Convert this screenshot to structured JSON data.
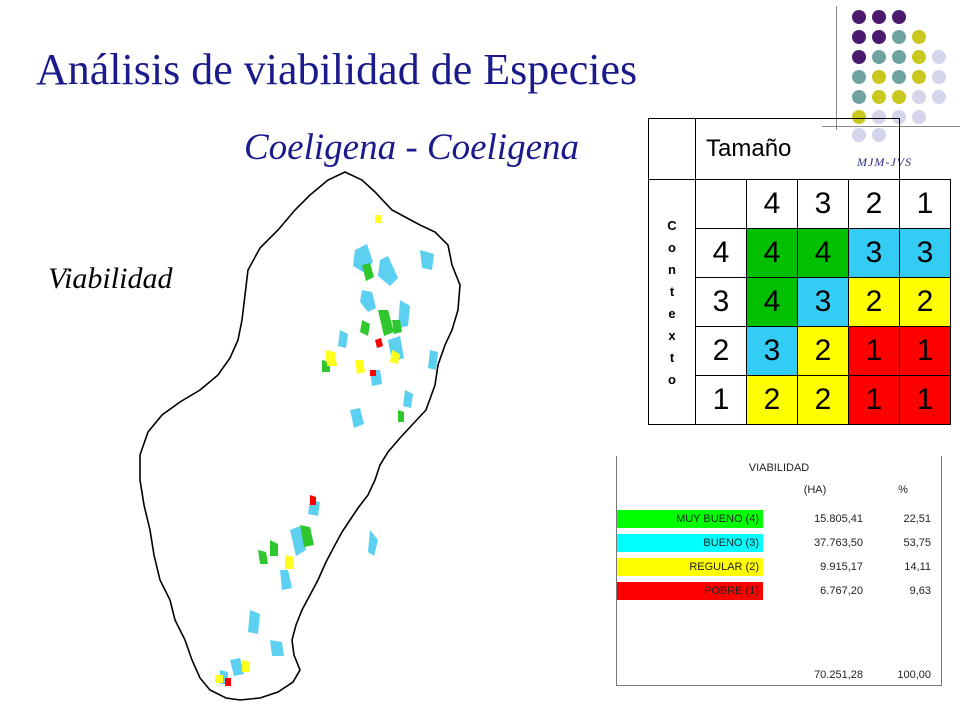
{
  "header": {
    "title": "Análisis de viabilidad de Especies",
    "subtitle": "Coeligena - Coeligena",
    "section_label": "Viabilidad",
    "signature": "MJM-JVS"
  },
  "decor": {
    "dot_colors": [
      "#4b1a6e",
      "#6fa3a0",
      "#c8c81e",
      "#d4d4ea"
    ]
  },
  "matrix": {
    "column_header": "Tamaño",
    "row_header": "Contexto",
    "row_header_letters": [
      "C",
      "o",
      "n",
      "t",
      "e",
      "x",
      "t",
      "o"
    ],
    "size_values": [
      "4",
      "3",
      "2",
      "1"
    ],
    "rows": [
      {
        "context": "4",
        "cells": [
          "4",
          "4",
          "3",
          "3"
        ]
      },
      {
        "context": "3",
        "cells": [
          "4",
          "3",
          "2",
          "2"
        ]
      },
      {
        "context": "2",
        "cells": [
          "3",
          "2",
          "1",
          "1"
        ]
      },
      {
        "context": "1",
        "cells": [
          "2",
          "2",
          "1",
          "1"
        ]
      }
    ],
    "colors": {
      "4": "#00c000",
      "3": "#33ccf5",
      "2": "#ffff00",
      "1": "#ff0000"
    }
  },
  "viability_table": {
    "title": "VIABILIDAD",
    "col_ha": "(HA)",
    "col_pct": "%",
    "rows": [
      {
        "label": "MUY BUENO (4)",
        "ha": "15.805,41",
        "pct": "22,51",
        "color": "#00ff00"
      },
      {
        "label": "BUENO (3)",
        "ha": "37.763,50",
        "pct": "53,75",
        "color": "#00ffff"
      },
      {
        "label": "REGULAR (2)",
        "ha": "9.915,17",
        "pct": "14,11",
        "color": "#ffff00"
      },
      {
        "label": "POBRE (1)",
        "ha": "6.767,20",
        "pct": "9,63",
        "color": "#ff0000"
      }
    ],
    "total_ha": "70.251,28",
    "total_pct": "100,00"
  }
}
